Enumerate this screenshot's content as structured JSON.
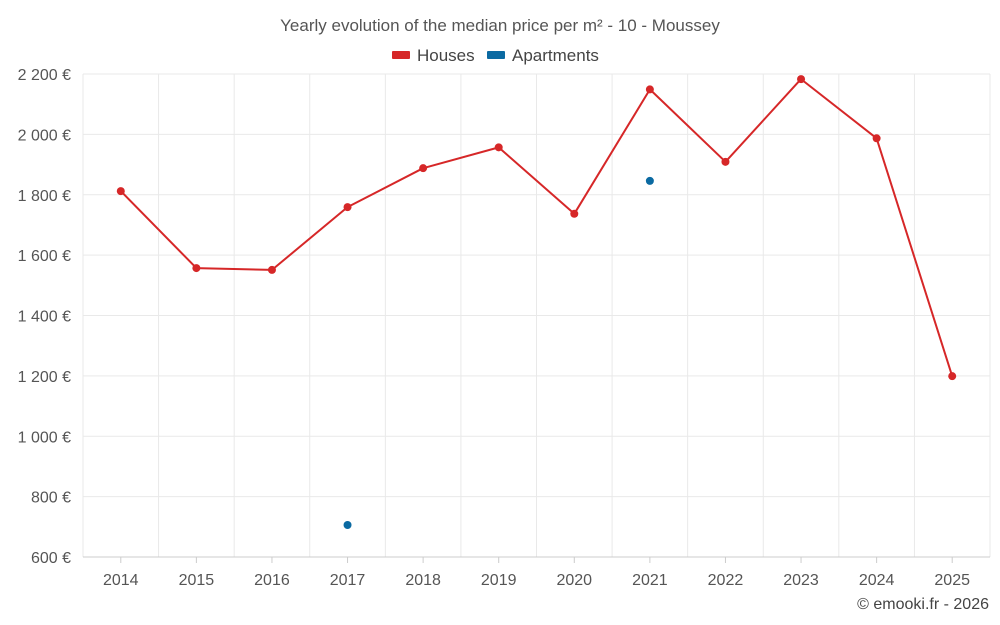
{
  "chart_data": {
    "type": "line",
    "title": "Yearly evolution of the median price per m² - 10 - Moussey",
    "categories": [
      "2014",
      "2015",
      "2016",
      "2017",
      "2018",
      "2019",
      "2020",
      "2021",
      "2022",
      "2023",
      "2024",
      "2025"
    ],
    "series": [
      {
        "name": "Houses",
        "color": "#d62728",
        "values": [
          1812,
          1557,
          1551,
          1759,
          1888,
          1957,
          1737,
          2149,
          1909,
          2183,
          1987,
          1199
        ]
      },
      {
        "name": "Apartments",
        "color": "#0b6aa2",
        "values": [
          null,
          null,
          null,
          706,
          null,
          null,
          null,
          1846,
          null,
          null,
          null,
          null
        ]
      }
    ],
    "ylim": [
      600,
      2200
    ],
    "yticks": [
      600,
      800,
      1000,
      1200,
      1400,
      1600,
      1800,
      2000,
      2200
    ],
    "ytick_labels": [
      "600 €",
      "800 €",
      "1 000 €",
      "1 200 €",
      "1 400 €",
      "1 600 €",
      "1 800 €",
      "2 000 €",
      "2 200 €"
    ],
    "xlabel": "",
    "ylabel": "",
    "grid": true,
    "legend_position": "top-center"
  },
  "credit": "© emooki.fr - 2026"
}
